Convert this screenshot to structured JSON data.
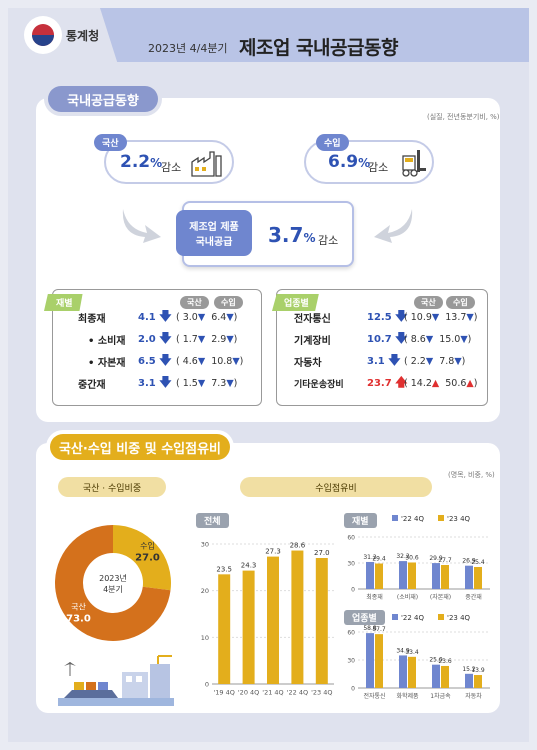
{
  "header": {
    "agency": "통계청",
    "period": "2023년 4/4분기",
    "title": "제조업 국내공급동향"
  },
  "section1": {
    "title": "국내공급동향",
    "unit": "(실질, 전년동분기비, %)",
    "domestic": {
      "tag": "국산",
      "value": "2.2",
      "pct": "%",
      "change": "감소"
    },
    "import": {
      "tag": "수입",
      "value": "6.9",
      "pct": "%",
      "change": "감소"
    },
    "total": {
      "label_line1": "제조업 제품",
      "label_line2": "국내공급",
      "value": "3.7",
      "pct": "%",
      "change": "감소"
    },
    "by_material": {
      "tag": "재별",
      "col_headers": [
        "국산",
        "수입"
      ],
      "rows": [
        {
          "name": "최종재",
          "total": "4.1",
          "dom": "3.0",
          "imp": "6.4",
          "dir": "down"
        },
        {
          "name": "• 소비재",
          "total": "2.0",
          "dom": "1.7",
          "imp": "2.9",
          "dir": "down"
        },
        {
          "name": "• 자본재",
          "total": "6.5",
          "dom": "4.6",
          "imp": "10.8",
          "dir": "down"
        },
        {
          "name": "중간재",
          "total": "3.1",
          "dom": "1.5",
          "imp": "7.3",
          "dir": "down"
        }
      ]
    },
    "by_industry": {
      "tag": "업종별",
      "col_headers": [
        "국산",
        "수입"
      ],
      "rows": [
        {
          "name": "전자통신",
          "total": "12.5",
          "dom": "10.9",
          "imp": "13.7",
          "dir": "down",
          "dom_dir": "down",
          "imp_dir": "down"
        },
        {
          "name": "기계장비",
          "total": "10.7",
          "dom": "8.6",
          "imp": "15.0",
          "dir": "down",
          "dom_dir": "down",
          "imp_dir": "down"
        },
        {
          "name": "자동차",
          "total": "3.1",
          "dom": "2.2",
          "imp": "7.8",
          "dir": "down",
          "dom_dir": "down",
          "imp_dir": "down"
        },
        {
          "name": "기타운송장비",
          "total": "23.7",
          "dom": "14.2",
          "imp": "50.6",
          "dir": "up",
          "dom_dir": "up",
          "imp_dir": "up"
        }
      ]
    }
  },
  "section2": {
    "title": "국산·수입 비중 및 수입점유비",
    "unit": "(명목, 비중, %)",
    "left_band": "국산 · 수입비중",
    "right_band": "수입점유비",
    "overall_tag": "전체",
    "material_tag": "재별",
    "industry_tag": "업종별",
    "legend_22": "'22 4Q",
    "legend_23": "'23 4Q"
  },
  "colors": {
    "blue": "#6f86cf",
    "gold": "#e3ae1c",
    "orange": "#d4711c",
    "navy": "#2e52b3",
    "red": "#e03030"
  },
  "chart_data": [
    {
      "type": "pie",
      "center_label": [
        "2023년",
        "4분기"
      ],
      "categories": [
        "수입",
        "국산"
      ],
      "values": [
        27.0,
        73.0
      ]
    },
    {
      "type": "bar",
      "title": "전체",
      "categories": [
        "'19 4Q",
        "'20 4Q",
        "'21 4Q",
        "'22 4Q",
        "'23 4Q"
      ],
      "values": [
        23.5,
        24.3,
        27.3,
        28.6,
        27.0
      ],
      "ylim": [
        0,
        30
      ],
      "yticks": [
        0,
        10,
        20,
        30
      ]
    },
    {
      "type": "bar",
      "title": "재별",
      "categories": [
        "최종재",
        "(소비재)",
        "(자본재)",
        "중간재"
      ],
      "series": [
        {
          "name": "'22 4Q",
          "values": [
            31.2,
            32.2,
            29.9,
            26.9
          ]
        },
        {
          "name": "'23 4Q",
          "values": [
            29.4,
            30.6,
            27.7,
            25.4
          ]
        }
      ],
      "ylim": [
        0,
        60
      ],
      "yticks": [
        0,
        30,
        60
      ]
    },
    {
      "type": "bar",
      "title": "업종별",
      "categories": [
        "전자통신",
        "화학제품",
        "1차금속",
        "자동차"
      ],
      "series": [
        {
          "name": "'22 4Q",
          "values": [
            58.8,
            34.9,
            25.0,
            15.2
          ]
        },
        {
          "name": "'23 4Q",
          "values": [
            57.7,
            33.4,
            23.6,
            13.9
          ]
        }
      ],
      "ylim": [
        0,
        60
      ],
      "yticks": [
        0,
        30,
        60
      ]
    }
  ]
}
